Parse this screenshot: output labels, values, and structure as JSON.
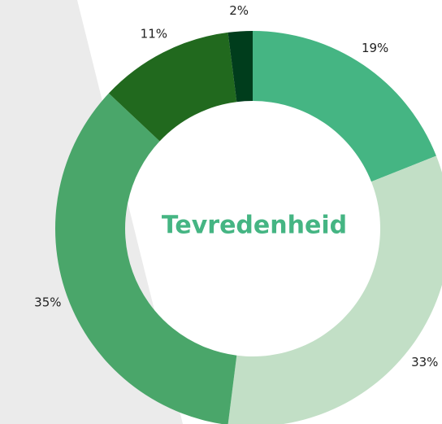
{
  "chart_data": {
    "type": "donut",
    "title": "Tevredenheid",
    "values": [
      19,
      33,
      35,
      11,
      2
    ],
    "value_labels": [
      "19%",
      "33%",
      "35%",
      "11%",
      "2%"
    ],
    "colors": [
      "#45b583",
      "#c2dfc6",
      "#4aa66a",
      "#21691e",
      "#003d1c"
    ]
  }
}
